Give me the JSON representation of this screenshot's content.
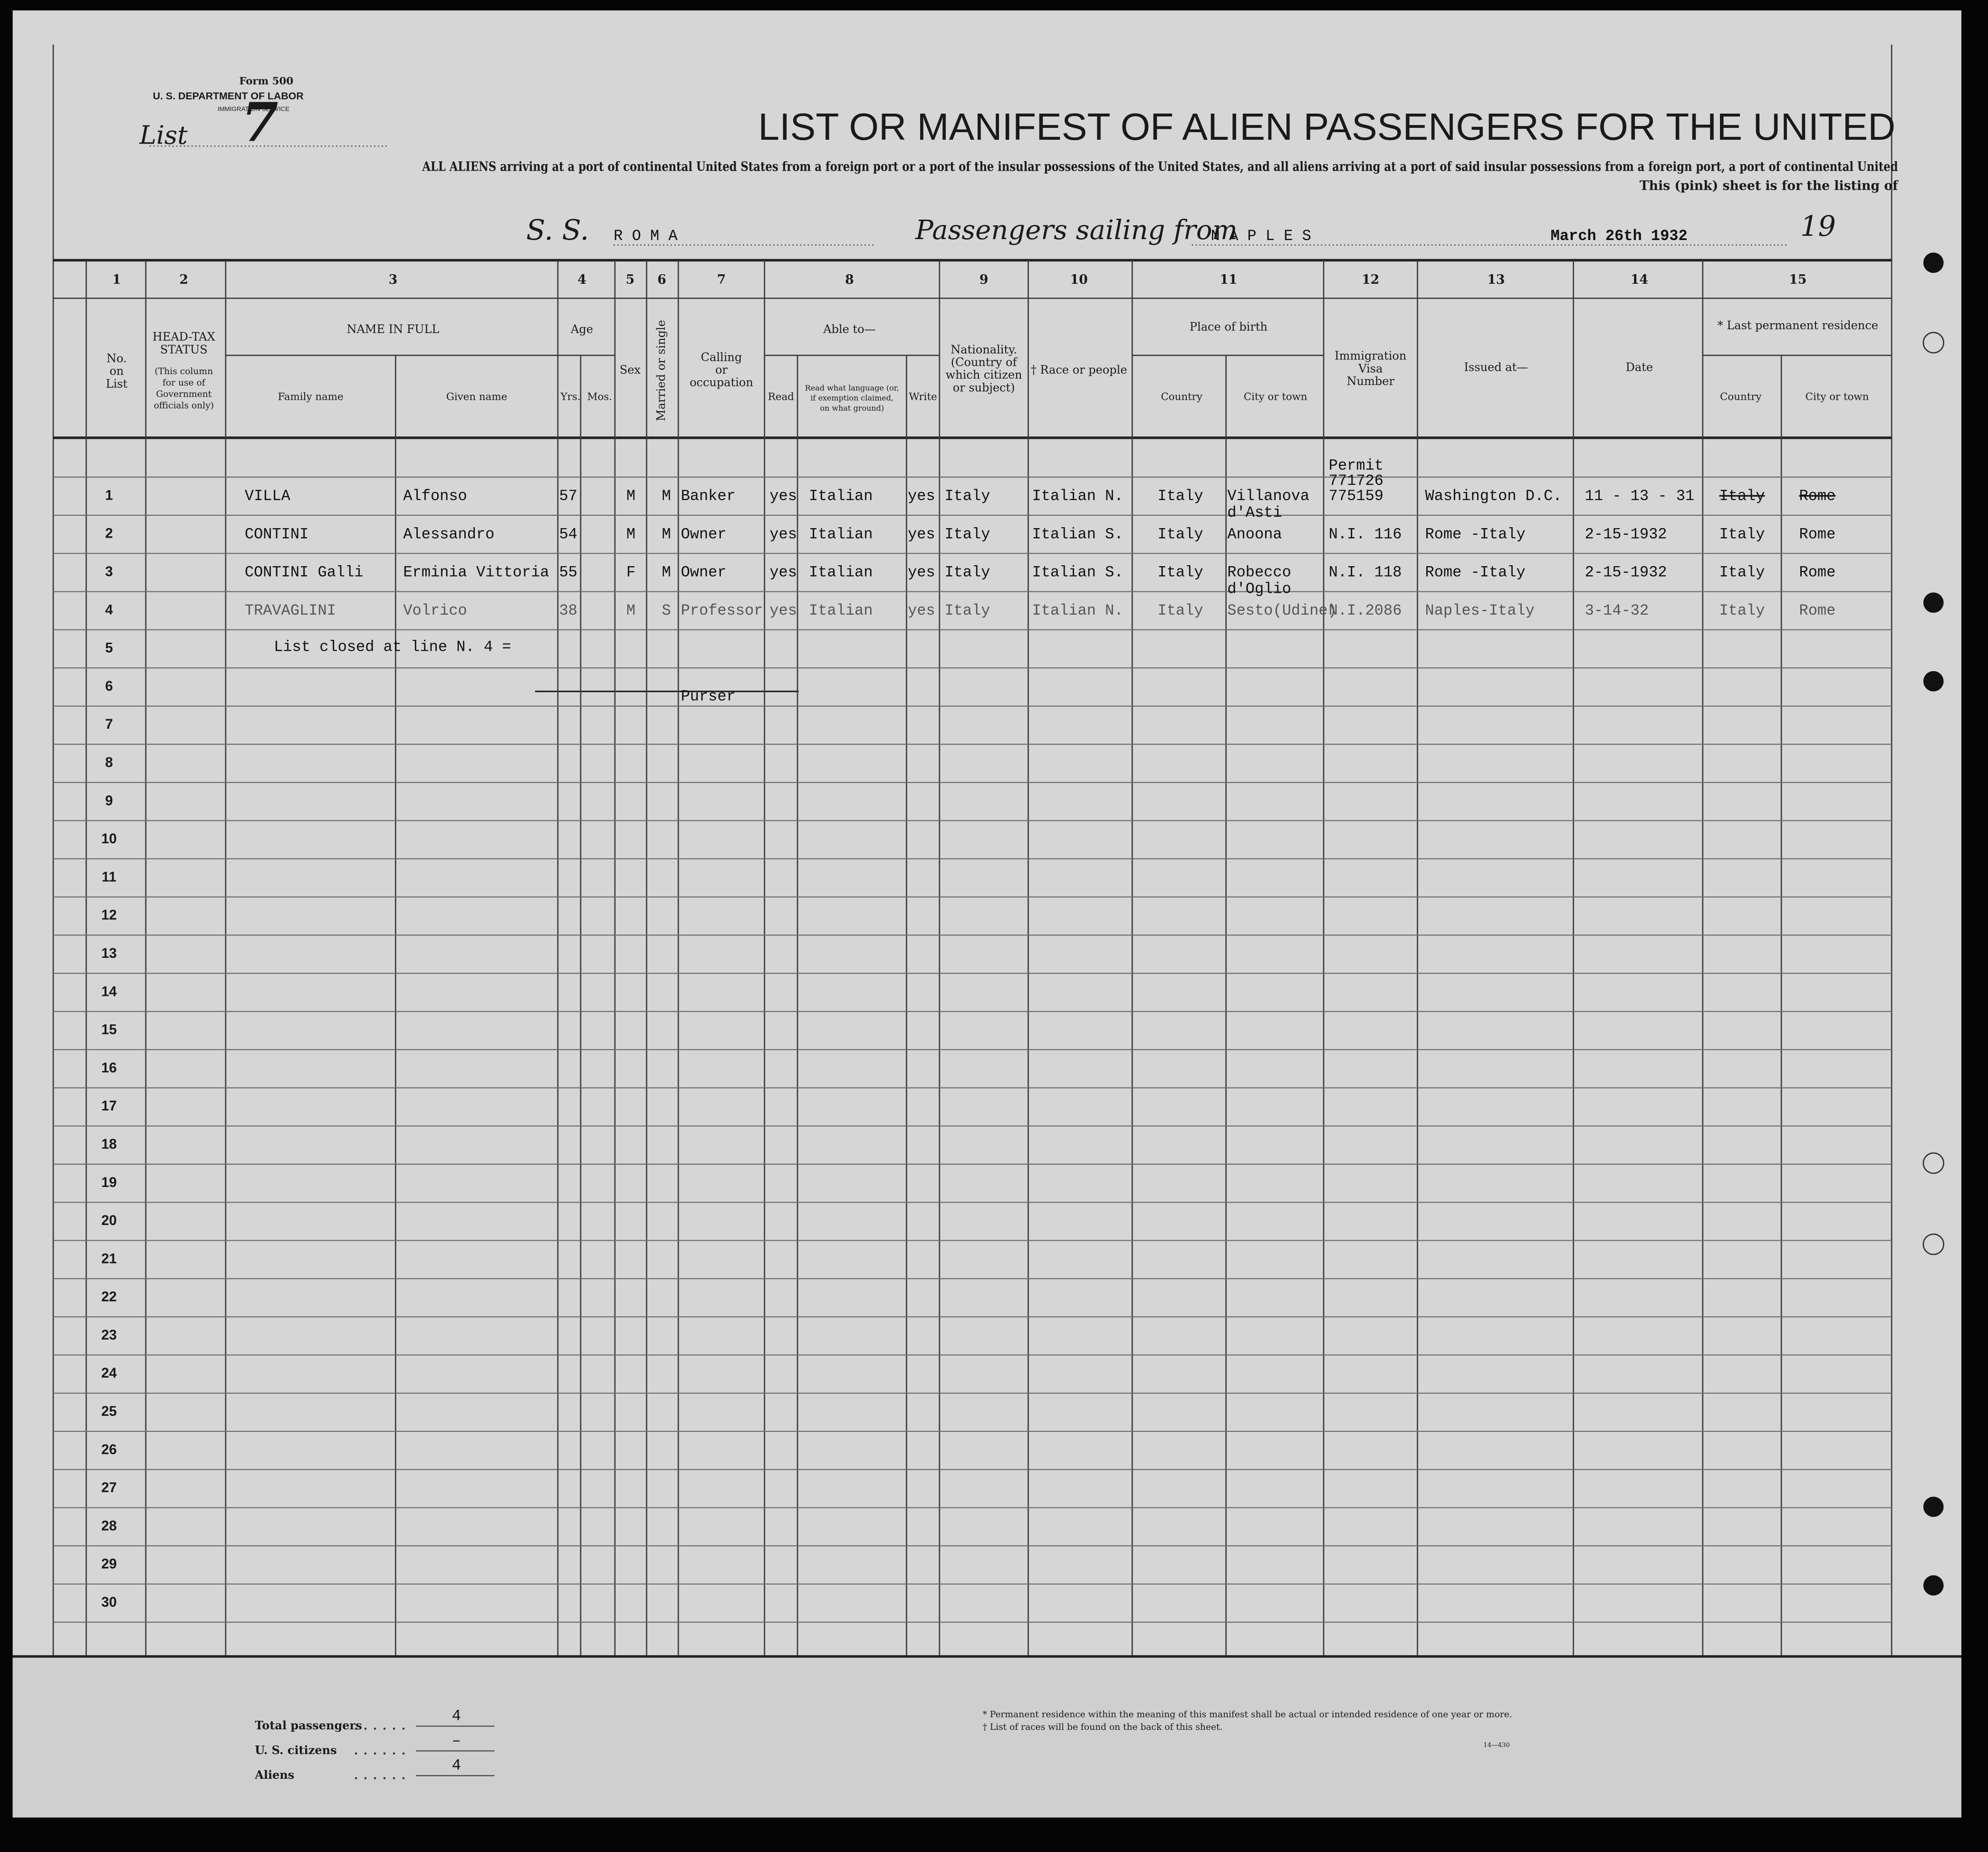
{
  "header": {
    "form": "Form 500",
    "department": "U. S. DEPARTMENT OF LABOR",
    "service": "IMMIGRATION SERVICE",
    "list_label": "List",
    "list_number": "7",
    "title": "LIST OR MANIFEST OF ALIEN PASSENGERS FOR THE UNITED",
    "instruction_1": "ALL ALIENS arriving at a port of continental United States from a foreign port or a port of the insular possessions of the United States, and all aliens arriving at a port of said insular possessions from a foreign port, a port of continental United",
    "instruction_2": "This (pink) sheet is for the listing of",
    "ship_label": "S. S.",
    "ship": "R O M A",
    "sailing_label": "Passengers sailing from",
    "port": "N A P L E S",
    "date": "March 26th 1932",
    "year_label": "19"
  },
  "columns": [
    {
      "number": 1,
      "label": [
        "No.",
        "on",
        "List"
      ]
    },
    {
      "number": 2,
      "label": [
        "HEAD-TAX",
        "STATUS"
      ],
      "note": [
        "(This column",
        "for use of",
        "Government",
        "officials only)"
      ]
    },
    {
      "number": 3,
      "label": [
        "NAME IN FULL"
      ],
      "sub": [
        [
          "Family name"
        ],
        [
          "Given name"
        ]
      ]
    },
    {
      "number": 4,
      "label": [
        "Age"
      ],
      "sub": [
        [
          "Yrs."
        ],
        [
          "Mos."
        ]
      ]
    },
    {
      "number": 5,
      "label": [
        "Sex"
      ]
    },
    {
      "number": 6,
      "label": [
        "Married or single"
      ]
    },
    {
      "number": 7,
      "label": [
        "Calling",
        "or",
        "occupation"
      ]
    },
    {
      "number": 8,
      "label": [
        "Able to—"
      ],
      "sub": [
        [
          "Read"
        ],
        [
          "Read what language (or,",
          "if exemption claimed,",
          "on what ground)"
        ],
        [
          "Write"
        ]
      ]
    },
    {
      "number": 9,
      "label": [
        "Nationality.",
        "(Country of",
        "which citizen",
        "or subject)"
      ]
    },
    {
      "number": 10,
      "label": [
        "† Race or people"
      ]
    },
    {
      "number": 11,
      "label": [
        "Place of birth"
      ],
      "sub": [
        [
          "Country"
        ],
        [
          "City or town"
        ]
      ]
    },
    {
      "number": 12,
      "label": [
        "Immigration",
        "Visa",
        "Number"
      ]
    },
    {
      "number": 13,
      "label": [
        "Issued at—"
      ]
    },
    {
      "number": 14,
      "label": [
        "Date"
      ]
    },
    {
      "number": 15,
      "label": [
        "* Last permanent residence"
      ],
      "sub": [
        [
          "Country"
        ],
        [
          "City or town"
        ]
      ]
    }
  ],
  "line_numbers": [
    1,
    2,
    3,
    4,
    5,
    6,
    7,
    8,
    9,
    10,
    11,
    12,
    13,
    14,
    15,
    16,
    17,
    18,
    19,
    20,
    21,
    22,
    23,
    24,
    25,
    26,
    27,
    28,
    29,
    30
  ],
  "rows": [
    {
      "family_name": "VILLA",
      "given_name": "Alfonso",
      "age": 57,
      "sex": "M",
      "marital": "M",
      "occupation": "Banker",
      "read": "yes",
      "language": "Italian",
      "write": "yes",
      "nationality": "Italy",
      "race": "Italian N.",
      "birth_country": "Italy",
      "birth_city": [
        "Villanova",
        "d'Asti"
      ],
      "visa": [
        "Permit",
        "771726",
        "775159"
      ],
      "issued_at": "Washington D.C.",
      "date": "11 - 13 - 31",
      "residence_country": "Italy",
      "residence_city": "Rome",
      "residence_struck": true
    },
    {
      "family_name": "CONTINI",
      "given_name": "Alessandro",
      "age": 54,
      "sex": "M",
      "marital": "M",
      "occupation": "Owner",
      "read": "yes",
      "language": "Italian",
      "write": "yes",
      "nationality": "Italy",
      "race": "Italian S.",
      "birth_country": "Italy",
      "birth_city": [
        "Anoona"
      ],
      "visa": [
        "N.I. 116"
      ],
      "issued_at": "Rome -Italy",
      "date": "2-15-1932",
      "residence_country": "Italy",
      "residence_city": "Rome",
      "residence_struck": false
    },
    {
      "family_name": "CONTINI Galli",
      "given_name": "Erminia Vittoria",
      "age": 55,
      "sex": "F",
      "marital": "M",
      "occupation": "Owner",
      "read": "yes",
      "language": "Italian",
      "write": "yes",
      "nationality": "Italy",
      "race": "Italian S.",
      "birth_country": "Italy",
      "birth_city": [
        "Robecco",
        "d'Oglio"
      ],
      "visa": [
        "N.I. 118"
      ],
      "issued_at": "Rome -Italy",
      "date": "2-15-1932",
      "residence_country": "Italy",
      "residence_city": "Rome",
      "residence_struck": false
    },
    {
      "family_name": "TRAVAGLINI",
      "given_name": "Volrico",
      "age": 38,
      "sex": "M",
      "marital": "S",
      "occupation": "Professor",
      "read": "yes",
      "language": "Italian",
      "write": "yes",
      "nationality": "Italy",
      "race": "Italian N.",
      "birth_country": "Italy",
      "birth_city": [
        "Sesto(Udine)"
      ],
      "visa": [
        "N.I.2086"
      ],
      "issued_at": "Naples-Italy",
      "date": "3-14-32",
      "residence_country": "Italy",
      "residence_city": "Rome",
      "residence_struck": false
    }
  ],
  "closing": {
    "text": "List closed at line N. 4 =",
    "purser": "Purser"
  },
  "footer": {
    "totals": [
      {
        "label": "Total passengers",
        "value": "4"
      },
      {
        "label": "U. S. citizens",
        "value": "–"
      },
      {
        "label": "Aliens",
        "value": "4"
      }
    ],
    "footnotes": [
      "* Permanent residence within the meaning of this manifest shall be actual or intended residence of one year or more.",
      "† List of races will be found on the back of this sheet."
    ],
    "form_code": "14—430"
  }
}
